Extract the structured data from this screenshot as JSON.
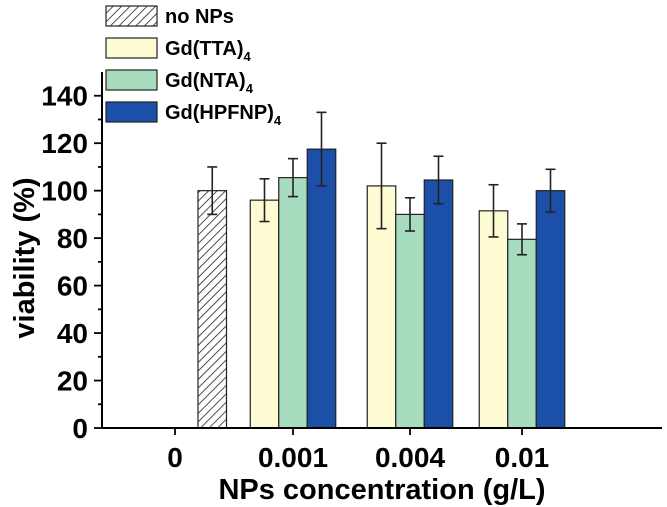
{
  "chart_data": {
    "type": "bar",
    "xlabel": "NPs concentration (g/L)",
    "ylabel": "viability (%)",
    "ylim": [
      0,
      150
    ],
    "yticks": [
      0,
      20,
      40,
      60,
      80,
      100,
      120,
      140
    ],
    "categories": [
      "0",
      "0.001",
      "0.004",
      "0.01"
    ],
    "grid": false,
    "legend_position": "top-left",
    "series": [
      {
        "name": "no NPs",
        "label_main": "no NPs",
        "label_sub": "",
        "fill": "#ffffff",
        "pattern": "hatch",
        "values": [
          100,
          null,
          null,
          null
        ],
        "errors": [
          10,
          null,
          null,
          null
        ]
      },
      {
        "name": "Gd(TTA)4",
        "label_main": "Gd(TTA)",
        "label_sub": "4",
        "fill": "#fdfbd1",
        "pattern": "none",
        "values": [
          null,
          96,
          102,
          91.5
        ],
        "errors": [
          null,
          9,
          18,
          11
        ]
      },
      {
        "name": "Gd(NTA)4",
        "label_main": "Gd(NTA)",
        "label_sub": "4",
        "fill": "#a8dcbe",
        "pattern": "none",
        "values": [
          null,
          105.5,
          90,
          79.5
        ],
        "errors": [
          null,
          8,
          7,
          6.5
        ]
      },
      {
        "name": "Gd(HPFNP)4",
        "label_main": "Gd(HPFNP)",
        "label_sub": "4",
        "fill": "#1c4fa8",
        "pattern": "none",
        "values": [
          null,
          117.5,
          104.5,
          100
        ],
        "errors": [
          null,
          15.5,
          10,
          9
        ]
      }
    ]
  }
}
